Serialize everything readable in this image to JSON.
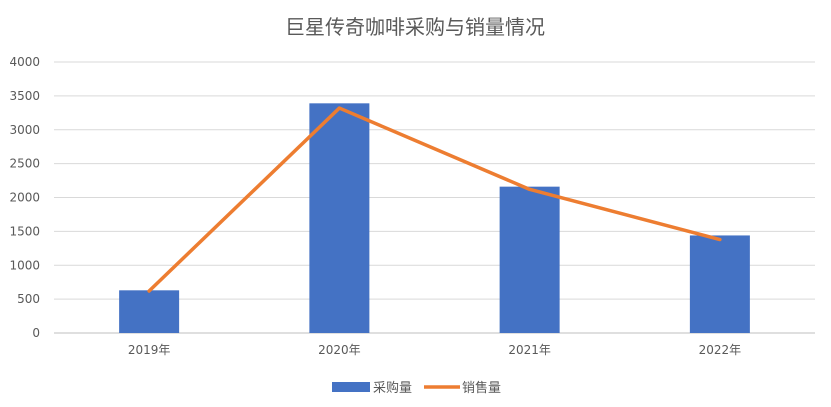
{
  "chart_data": {
    "type": "bar",
    "title": "巨星传奇咖啡采购与销量情况",
    "categories": [
      "2019年",
      "2020年",
      "2021年",
      "2022年"
    ],
    "series": [
      {
        "name": "采购量",
        "type": "bar",
        "values": [
          630,
          3390,
          2160,
          1440
        ],
        "color": "#4472C4"
      },
      {
        "name": "销售量",
        "type": "line",
        "values": [
          620,
          3320,
          2120,
          1380
        ],
        "color": "#ED7D31"
      }
    ],
    "ylim": [
      0,
      4000
    ],
    "yticks": [
      "0",
      "500",
      "1000",
      "1500",
      "2000",
      "2500",
      "3000",
      "3500",
      "4000"
    ],
    "grid": true,
    "legend": "bottom"
  }
}
